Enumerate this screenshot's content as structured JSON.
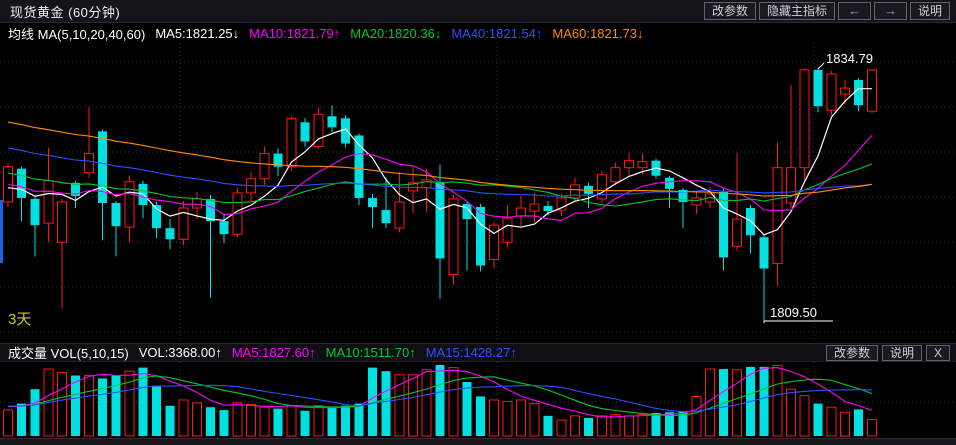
{
  "title_bar": {
    "title": "现货黄金 (60分钟)",
    "buttons": {
      "change_params": "改参数",
      "hide_main_indicator": "隐藏主指标",
      "prev_arrow": "←",
      "next_arrow": "→",
      "help": "说明"
    }
  },
  "main_legend": {
    "name": "均线",
    "formula": "MA(5,10,20,40,60)",
    "items": [
      {
        "label": "MA5:1821.25",
        "arrow": "↓",
        "color": "#ffffff"
      },
      {
        "label": "MA10:1821.79",
        "arrow": "↑",
        "color": "#ff00ff"
      },
      {
        "label": "MA20:1820.36",
        "arrow": "↓",
        "color": "#00c832"
      },
      {
        "label": "MA40:1821.54",
        "arrow": "↑",
        "color": "#2d50ff"
      },
      {
        "label": "MA60:1821.73",
        "arrow": "↓",
        "color": "#ff8c00"
      }
    ]
  },
  "volume_header": {
    "name": "成交量",
    "formula": "VOL(5,10,15)",
    "items": [
      {
        "label": "VOL:3368.00",
        "arrow": "↑",
        "color": "#ffffff"
      },
      {
        "label": "MA5:1827.60",
        "arrow": "↑",
        "color": "#ff00ff"
      },
      {
        "label": "MA10:1511.70",
        "arrow": "↑",
        "color": "#00c832"
      },
      {
        "label": "MA15:1428.27",
        "arrow": "↑",
        "color": "#2d50ff"
      }
    ],
    "buttons": {
      "change_params": "改参数",
      "help": "说明",
      "close": "X"
    }
  },
  "annotations": {
    "high_label": "1834.79",
    "low_label": "1809.50",
    "range_label": "3天"
  },
  "chart_data": {
    "type": "candlestick+volume",
    "title": "现货黄金 60分钟 K线",
    "price_axis": {
      "shown_high": 1834.79,
      "shown_low": 1809.5,
      "labels_visible": false
    },
    "ma_periods_price": [
      5,
      10,
      20,
      40,
      60
    ],
    "ma_periods_volume": [
      5,
      10,
      15
    ],
    "legend_position": "top-left",
    "grid": "dotted",
    "colors": {
      "up": "#ff1616",
      "down": "#00e0e0",
      "ma5": "#ffffff",
      "ma10": "#ff00ff",
      "ma20": "#00c832",
      "ma40": "#2d50ff",
      "ma60": "#ff8c00",
      "vol_ma5": "#ff00ff",
      "vol_ma10": "#00c832",
      "vol_ma15": "#2d50ff",
      "grid": "#333338",
      "annotation": "#ffffff",
      "range_label": "#c8c832",
      "left_marker": "#1565e0"
    },
    "price_prehistory": {
      "start": 1837.0,
      "end": 1822.0,
      "count": 59
    },
    "volume_prehistory": 0.42,
    "columns": [
      "open",
      "high",
      "low",
      "close",
      "dir",
      "vol_fraction"
    ],
    "candles": [
      [
        1821.5,
        1825.3,
        1821.0,
        1825.0,
        "u",
        0.36
      ],
      [
        1824.8,
        1825.0,
        1819.6,
        1821.9,
        "d",
        0.45
      ],
      [
        1821.8,
        1822.0,
        1816.1,
        1819.2,
        "d",
        0.65
      ],
      [
        1819.4,
        1826.9,
        1817.5,
        1823.6,
        "u",
        0.93
      ],
      [
        1817.5,
        1821.8,
        1810.9,
        1821.5,
        "u",
        0.88
      ],
      [
        1823.4,
        1823.6,
        1820.9,
        1822.1,
        "d",
        0.84
      ],
      [
        1824.4,
        1830.9,
        1823.9,
        1826.3,
        "u",
        0.84
      ],
      [
        1828.5,
        1828.7,
        1817.7,
        1821.4,
        "d",
        0.8
      ],
      [
        1821.4,
        1821.6,
        1816.1,
        1819.1,
        "d",
        0.84
      ],
      [
        1819.0,
        1824.1,
        1817.5,
        1823.5,
        "u",
        0.9
      ],
      [
        1823.3,
        1823.6,
        1819.9,
        1821.2,
        "d",
        0.95
      ],
      [
        1821.2,
        1821.5,
        1817.9,
        1818.9,
        "d",
        0.7
      ],
      [
        1818.9,
        1819.8,
        1816.8,
        1817.8,
        "d",
        0.42
      ],
      [
        1817.8,
        1821.6,
        1817.2,
        1820.9,
        "u",
        0.5
      ],
      [
        1820.9,
        1822.5,
        1819.8,
        1821.8,
        "u",
        0.46
      ],
      [
        1821.8,
        1822.2,
        1812.0,
        1819.6,
        "d",
        0.4
      ],
      [
        1819.6,
        1820.3,
        1817.4,
        1818.3,
        "d",
        0.36
      ],
      [
        1818.3,
        1822.9,
        1818.0,
        1822.4,
        "u",
        0.46
      ],
      [
        1822.4,
        1824.5,
        1821.6,
        1823.8,
        "u",
        0.44
      ],
      [
        1823.8,
        1827.0,
        1823.2,
        1826.3,
        "u",
        0.4
      ],
      [
        1826.3,
        1826.8,
        1824.1,
        1825.0,
        "d",
        0.38
      ],
      [
        1825.0,
        1830.0,
        1824.6,
        1829.8,
        "u",
        0.42
      ],
      [
        1829.4,
        1829.8,
        1827.0,
        1827.5,
        "d",
        0.35
      ],
      [
        1827.0,
        1830.9,
        1826.8,
        1830.2,
        "u",
        0.42
      ],
      [
        1830.0,
        1831.1,
        1828.4,
        1828.9,
        "d",
        0.4
      ],
      [
        1829.8,
        1830.1,
        1826.9,
        1827.3,
        "d",
        0.42
      ],
      [
        1828.1,
        1828.3,
        1821.2,
        1821.9,
        "d",
        0.45
      ],
      [
        1821.9,
        1822.3,
        1818.9,
        1821.0,
        "d",
        0.95
      ],
      [
        1820.7,
        1823.9,
        1818.9,
        1819.4,
        "d",
        0.9
      ],
      [
        1818.9,
        1824.5,
        1818.5,
        1821.5,
        "u",
        0.85
      ],
      [
        1822.6,
        1825.0,
        1820.4,
        1823.4,
        "u",
        0.85
      ],
      [
        1822.9,
        1824.8,
        1820.5,
        1823.7,
        "u",
        0.92
      ],
      [
        1823.4,
        1825.2,
        1811.9,
        1815.9,
        "d",
        1.0
      ],
      [
        1814.3,
        1822.2,
        1813.3,
        1821.8,
        "u",
        0.95
      ],
      [
        1821.3,
        1821.5,
        1814.7,
        1819.8,
        "d",
        0.75
      ],
      [
        1821.0,
        1821.3,
        1814.6,
        1815.2,
        "d",
        0.55
      ],
      [
        1815.8,
        1819.5,
        1814.9,
        1819.2,
        "u",
        0.5
      ],
      [
        1817.5,
        1821.2,
        1817.0,
        1819.9,
        "u",
        0.48
      ],
      [
        1820.1,
        1822.1,
        1819.1,
        1820.9,
        "u",
        0.5
      ],
      [
        1820.6,
        1822.4,
        1819.5,
        1821.3,
        "u",
        0.45
      ],
      [
        1821.1,
        1821.6,
        1820.2,
        1820.6,
        "d",
        0.28
      ],
      [
        1820.7,
        1822.3,
        1820.1,
        1821.9,
        "u",
        0.22
      ],
      [
        1821.9,
        1823.9,
        1821.6,
        1823.2,
        "u",
        0.28
      ],
      [
        1823.1,
        1823.4,
        1820.9,
        1822.3,
        "d",
        0.25
      ],
      [
        1821.8,
        1824.6,
        1821.4,
        1824.2,
        "u",
        0.28
      ],
      [
        1823.5,
        1825.4,
        1823.2,
        1824.9,
        "u",
        0.3
      ],
      [
        1824.9,
        1826.4,
        1824.1,
        1825.6,
        "u",
        0.28
      ],
      [
        1824.9,
        1826.3,
        1824.2,
        1825.5,
        "u",
        0.3
      ],
      [
        1825.6,
        1825.8,
        1823.8,
        1824.1,
        "d",
        0.32
      ],
      [
        1823.9,
        1824.1,
        1820.9,
        1822.8,
        "d",
        0.33
      ],
      [
        1822.7,
        1822.9,
        1818.9,
        1821.5,
        "d",
        0.34
      ],
      [
        1821.2,
        1822.5,
        1820.3,
        1821.9,
        "u",
        0.55
      ],
      [
        1821.5,
        1823.0,
        1820.9,
        1822.3,
        "u",
        0.93
      ],
      [
        1822.5,
        1822.9,
        1814.7,
        1816.0,
        "d",
        0.93
      ],
      [
        1817.1,
        1826.4,
        1816.7,
        1819.8,
        "u",
        0.92
      ],
      [
        1820.9,
        1821.2,
        1816.4,
        1818.2,
        "d",
        0.96
      ],
      [
        1818.0,
        1818.2,
        1809.5,
        1814.9,
        "d",
        0.96
      ],
      [
        1815.4,
        1827.4,
        1813.2,
        1824.9,
        "u",
        0.98
      ],
      [
        1821.4,
        1833.1,
        1820.9,
        1824.9,
        "u",
        0.65
      ],
      [
        1824.9,
        1834.7,
        1823.7,
        1834.6,
        "u",
        0.56
      ],
      [
        1834.6,
        1834.79,
        1830.4,
        1831.0,
        "d",
        0.45
      ],
      [
        1830.6,
        1834.5,
        1830.1,
        1834.2,
        "u",
        0.4
      ],
      [
        1832.2,
        1833.6,
        1831.2,
        1832.8,
        "u",
        0.33
      ],
      [
        1833.6,
        1833.8,
        1830.5,
        1831.1,
        "d",
        0.37
      ],
      [
        1830.5,
        1834.7,
        1830.3,
        1834.6,
        "u",
        0.23
      ]
    ]
  }
}
